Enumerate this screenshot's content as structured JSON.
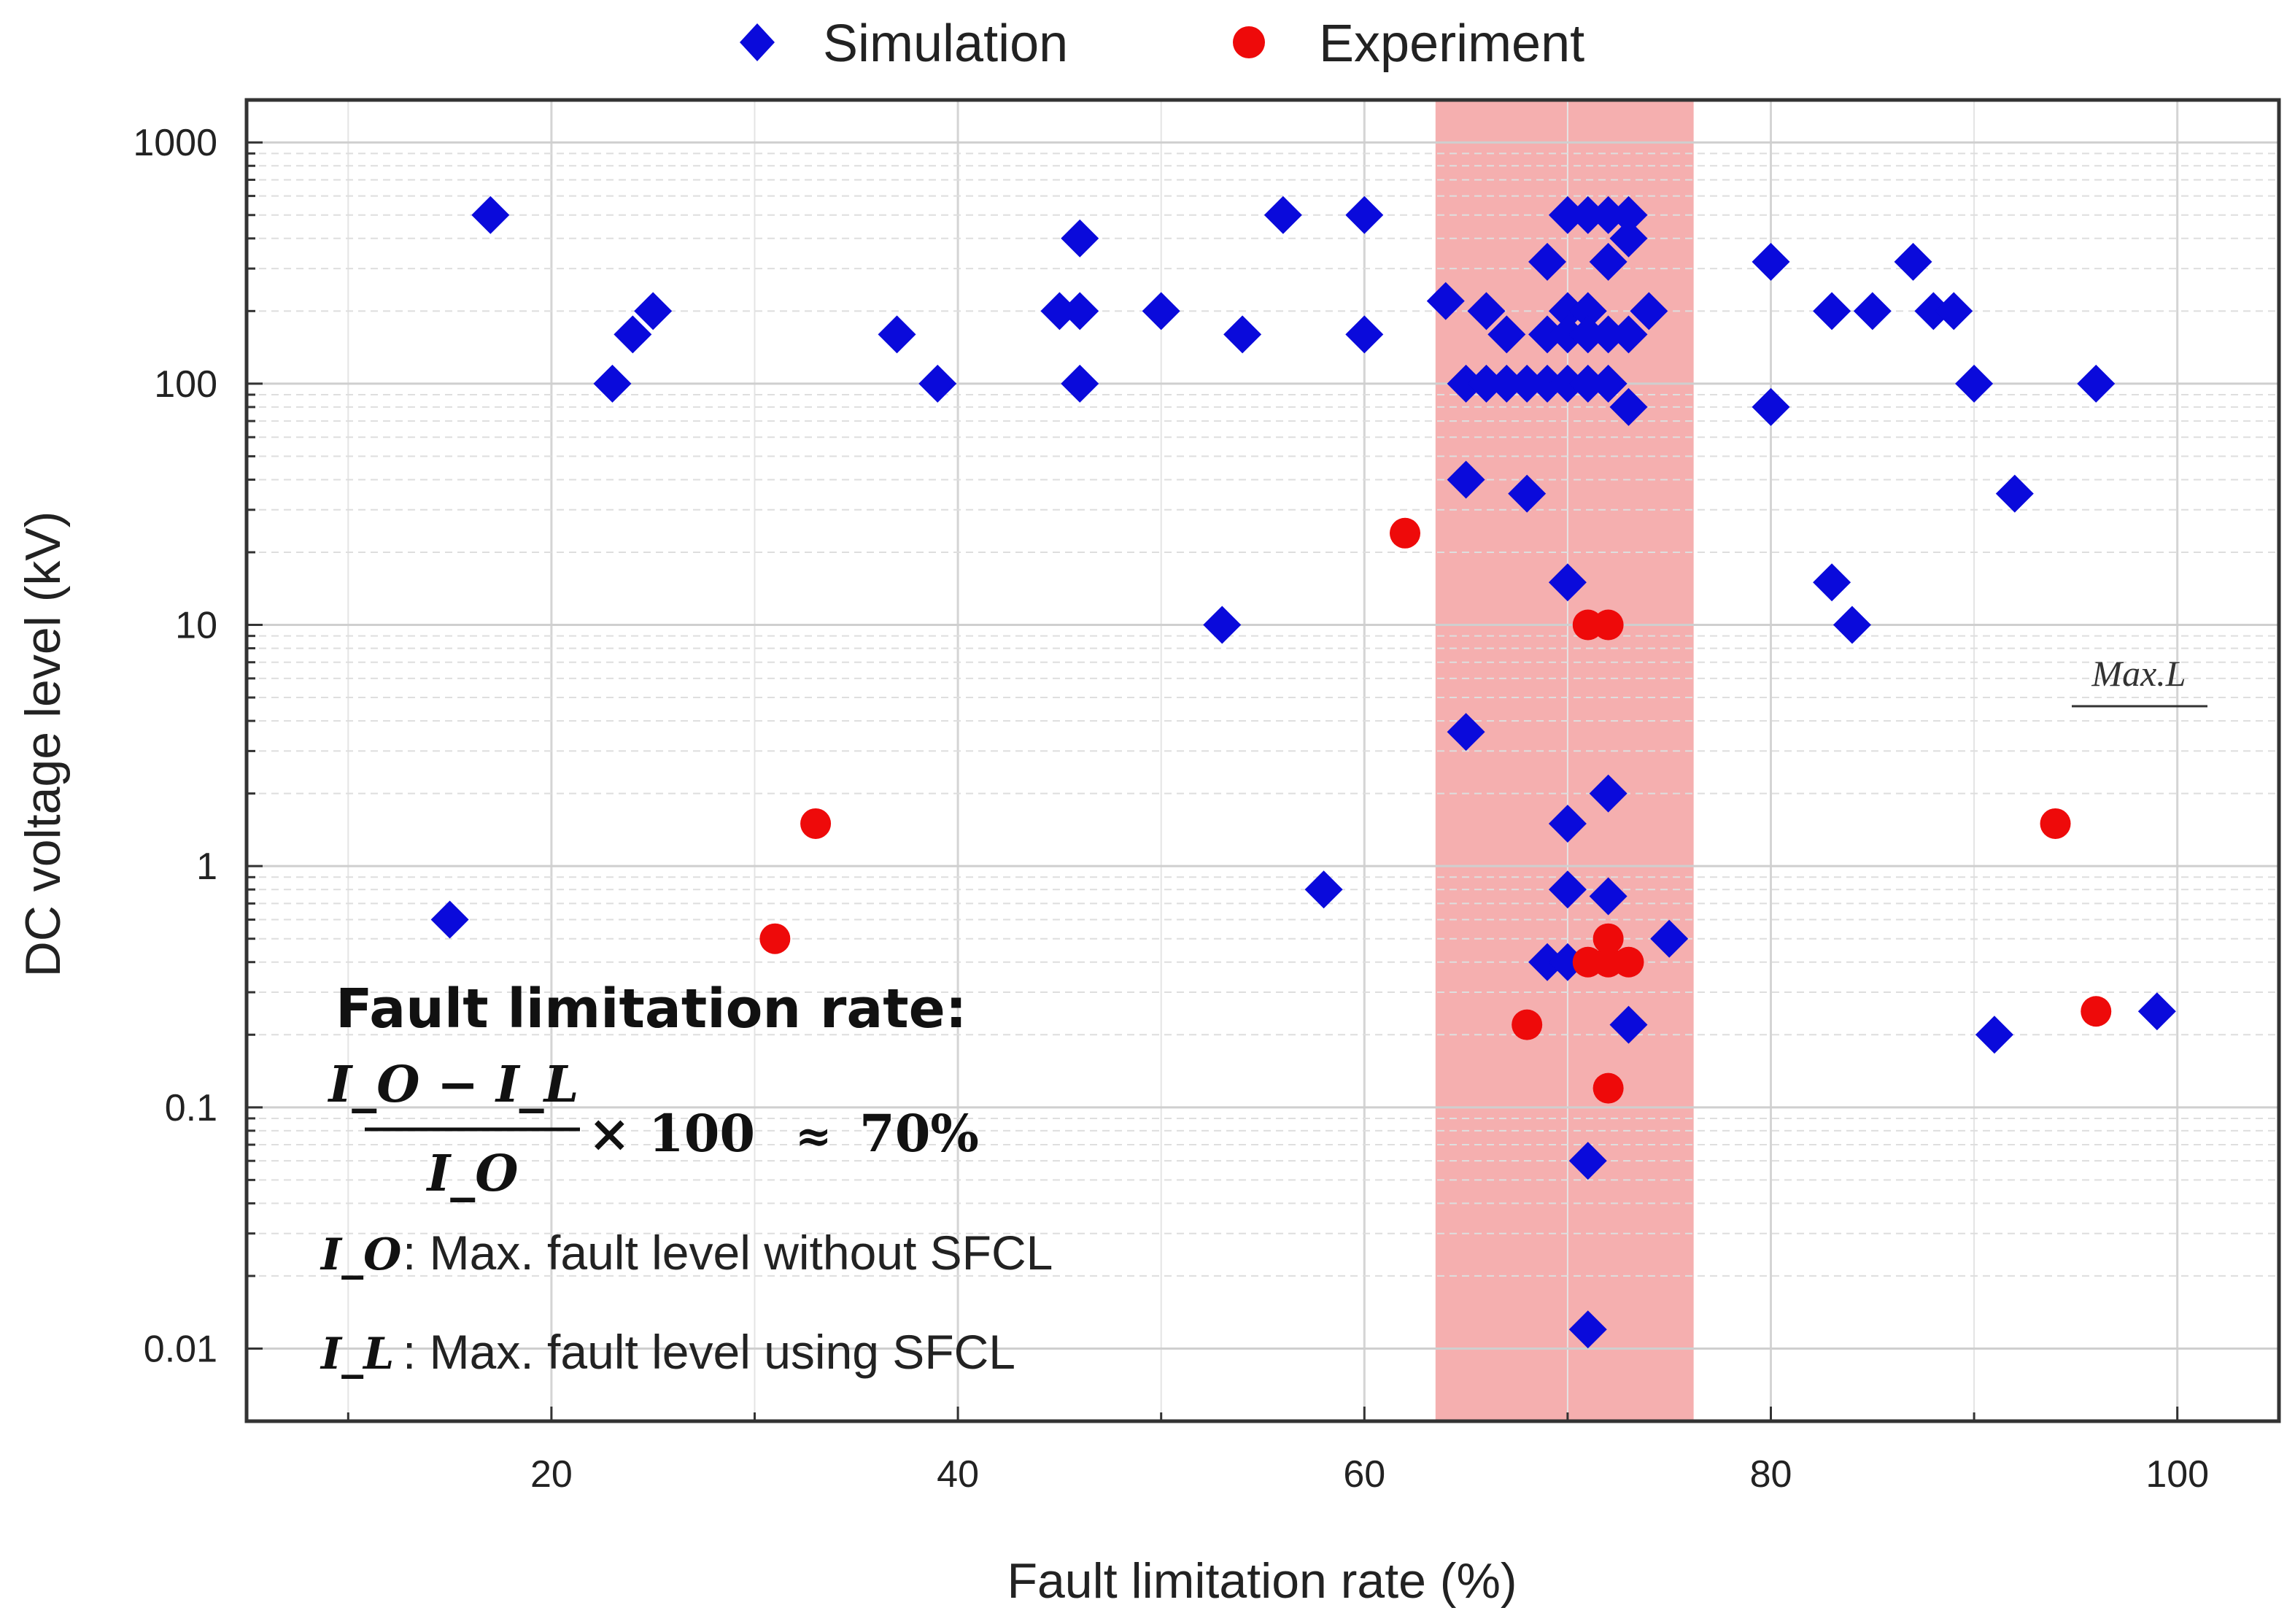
{
  "chart_data": {
    "type": "scatter",
    "xlabel": "Fault limitation rate (%)",
    "ylabel": "DC voltage level (kV)",
    "xlim": [
      5,
      105
    ],
    "ylim": [
      0.005,
      1500
    ],
    "yscale": "log",
    "x_ticks": [
      "20",
      "40",
      "60",
      "80",
      "100"
    ],
    "y_ticks": [
      "0.01",
      "0.1",
      "1",
      "10",
      "100",
      "1000"
    ],
    "grid": true,
    "legend_position": "top",
    "highlight_band": {
      "x_range": [
        63.5,
        76.2
      ],
      "color": "#f4a6a6"
    },
    "series": [
      {
        "name": "Simulation",
        "marker": "diamond",
        "color": "#0a0adb",
        "points": [
          [
            17,
            500
          ],
          [
            15,
            0.6
          ],
          [
            23,
            100
          ],
          [
            24,
            160
          ],
          [
            25,
            200
          ],
          [
            37,
            160
          ],
          [
            39,
            100
          ],
          [
            45,
            200
          ],
          [
            46,
            200
          ],
          [
            46,
            400
          ],
          [
            46,
            100
          ],
          [
            50,
            200
          ],
          [
            53,
            10
          ],
          [
            54,
            160
          ],
          [
            56,
            500
          ],
          [
            58,
            0.8
          ],
          [
            60,
            500
          ],
          [
            60,
            160
          ],
          [
            64,
            220
          ],
          [
            65,
            100
          ],
          [
            65,
            40
          ],
          [
            65,
            3.6
          ],
          [
            66,
            100
          ],
          [
            66,
            200
          ],
          [
            67,
            100
          ],
          [
            67,
            160
          ],
          [
            68,
            100
          ],
          [
            68,
            35
          ],
          [
            69,
            100
          ],
          [
            69,
            320
          ],
          [
            69,
            160
          ],
          [
            69,
            0.4
          ],
          [
            70,
            500
          ],
          [
            70,
            200
          ],
          [
            70,
            160
          ],
          [
            70,
            100
          ],
          [
            70,
            15
          ],
          [
            70,
            1.5
          ],
          [
            70,
            0.8
          ],
          [
            70,
            0.4
          ],
          [
            71,
            500
          ],
          [
            71,
            200
          ],
          [
            71,
            160
          ],
          [
            71,
            100
          ],
          [
            71,
            0.06
          ],
          [
            71,
            0.012
          ],
          [
            72,
            500
          ],
          [
            72,
            320
          ],
          [
            72,
            160
          ],
          [
            72,
            100
          ],
          [
            72,
            2
          ],
          [
            72,
            0.75
          ],
          [
            73,
            500
          ],
          [
            73,
            400
          ],
          [
            73,
            160
          ],
          [
            73,
            80
          ],
          [
            73,
            0.22
          ],
          [
            74,
            200
          ],
          [
            75,
            0.5
          ],
          [
            80,
            320
          ],
          [
            80,
            80
          ],
          [
            83,
            200
          ],
          [
            83,
            15
          ],
          [
            84,
            10
          ],
          [
            85,
            200
          ],
          [
            87,
            320
          ],
          [
            88,
            200
          ],
          [
            89,
            200
          ],
          [
            90,
            100
          ],
          [
            91,
            0.2
          ],
          [
            92,
            35
          ],
          [
            96,
            100
          ],
          [
            99,
            0.25
          ]
        ]
      },
      {
        "name": "Experiment",
        "marker": "circle",
        "color": "#ee0a0a",
        "points": [
          [
            31,
            0.5
          ],
          [
            33,
            1.5
          ],
          [
            62,
            24
          ],
          [
            68,
            0.22
          ],
          [
            71,
            10
          ],
          [
            72,
            10
          ],
          [
            71,
            0.4
          ],
          [
            72,
            0.4
          ],
          [
            72,
            0.5
          ],
          [
            73,
            0.4
          ],
          [
            72,
            0.12
          ],
          [
            94,
            1.5
          ],
          [
            96,
            0.25
          ]
        ]
      }
    ]
  },
  "legend": {
    "simulation_label": "Simulation",
    "experiment_label": "Experiment"
  },
  "annotation": {
    "title": "Fault limitation rate:",
    "formula_numerator": "I_O − I_L",
    "formula_denominator": "I_O",
    "formula_multiplier": "× 100",
    "formula_approx": "≈",
    "formula_result": "70%",
    "io_symbol": "I_O",
    "io_desc": ": Max. fault level without SFCL",
    "il_symbol": "I_L",
    "il_desc": ":  Max. fault level using SFCL",
    "max_l": "Max.L"
  }
}
